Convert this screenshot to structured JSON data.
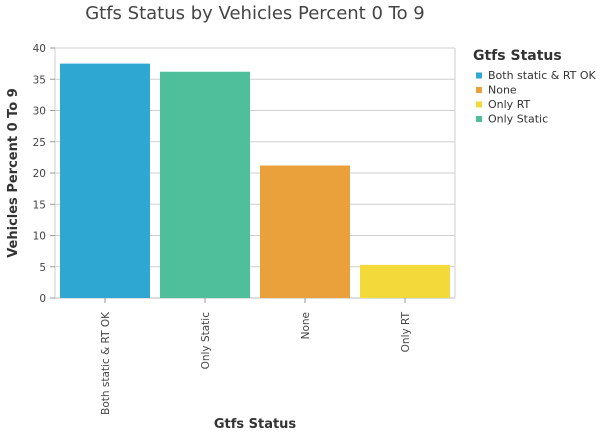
{
  "chart_data": {
    "type": "bar",
    "title": "Gtfs Status by Vehicles Percent 0 To 9",
    "xlabel": "Gtfs Status",
    "ylabel": "Vehicles Percent 0 To 9",
    "categories": [
      "Both static & RT OK",
      "Only Static",
      "None",
      "Only RT"
    ],
    "values": [
      37.5,
      36.2,
      21.2,
      5.3
    ],
    "colors": [
      "#2ea8d3",
      "#4fbf9b",
      "#eaa03b",
      "#f3d939"
    ],
    "ylim": [
      0,
      40
    ],
    "yticks": [
      0,
      5,
      10,
      15,
      20,
      25,
      30,
      35,
      40
    ],
    "grid": true,
    "legend": {
      "title": "Gtfs Status",
      "placement": "right",
      "entries": [
        {
          "label": "Both static & RT OK",
          "color": "#2ea8d3"
        },
        {
          "label": "None",
          "color": "#eaa03b"
        },
        {
          "label": "Only RT",
          "color": "#f3d939"
        },
        {
          "label": "Only Static",
          "color": "#4fbf9b"
        }
      ]
    }
  }
}
